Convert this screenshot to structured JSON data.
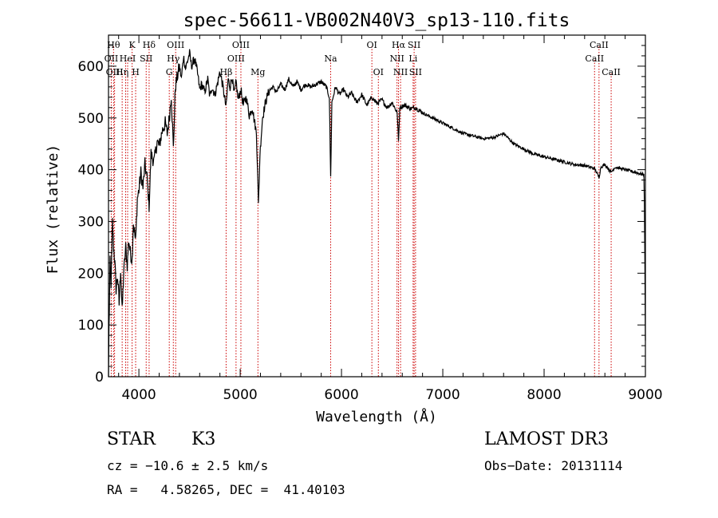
{
  "chart_data": {
    "type": "line",
    "title": "spec-56611-VB002N40V3_sp13-110.fits",
    "xlabel": "Wavelength (Å)",
    "ylabel": "Flux (relative)",
    "xlim": [
      3700,
      9000
    ],
    "ylim": [
      0,
      660
    ],
    "x_ticks": [
      4000,
      5000,
      6000,
      7000,
      8000,
      9000
    ],
    "y_ticks": [
      0,
      100,
      200,
      300,
      400,
      500,
      600
    ],
    "grid": false,
    "line_color": "#000000",
    "marker_color": "#cc0000",
    "continuum": [
      [
        3700,
        0
      ],
      [
        3705,
        90
      ],
      [
        3715,
        220
      ],
      [
        3725,
        180
      ],
      [
        3740,
        300
      ],
      [
        3750,
        250
      ],
      [
        3760,
        230
      ],
      [
        3775,
        170
      ],
      [
        3790,
        195
      ],
      [
        3805,
        140
      ],
      [
        3820,
        210
      ],
      [
        3835,
        125
      ],
      [
        3850,
        200
      ],
      [
        3870,
        250
      ],
      [
        3885,
        215
      ],
      [
        3900,
        265
      ],
      [
        3915,
        240
      ],
      [
        3933,
        225
      ],
      [
        3945,
        300
      ],
      [
        3968,
        260
      ],
      [
        3985,
        345
      ],
      [
        4000,
        360
      ],
      [
        4020,
        395
      ],
      [
        4040,
        365
      ],
      [
        4060,
        410
      ],
      [
        4080,
        385
      ],
      [
        4101,
        330
      ],
      [
        4120,
        430
      ],
      [
        4150,
        415
      ],
      [
        4180,
        455
      ],
      [
        4200,
        445
      ],
      [
        4230,
        475
      ],
      [
        4260,
        490
      ],
      [
        4280,
        470
      ],
      [
        4300,
        500
      ],
      [
        4320,
        545
      ],
      [
        4340,
        440
      ],
      [
        4360,
        560
      ],
      [
        4380,
        580
      ],
      [
        4400,
        600
      ],
      [
        4420,
        575
      ],
      [
        4440,
        620
      ],
      [
        4460,
        595
      ],
      [
        4480,
        610
      ],
      [
        4500,
        625
      ],
      [
        4520,
        600
      ],
      [
        4550,
        615
      ],
      [
        4580,
        585
      ],
      [
        4600,
        555
      ],
      [
        4620,
        565
      ],
      [
        4650,
        550
      ],
      [
        4680,
        575
      ],
      [
        4700,
        540
      ],
      [
        4720,
        560
      ],
      [
        4750,
        545
      ],
      [
        4780,
        570
      ],
      [
        4800,
        590
      ],
      [
        4830,
        560
      ],
      [
        4861,
        520
      ],
      [
        4880,
        575
      ],
      [
        4900,
        560
      ],
      [
        4920,
        580
      ],
      [
        4940,
        545
      ],
      [
        4960,
        570
      ],
      [
        4980,
        535
      ],
      [
        5007,
        555
      ],
      [
        5030,
        525
      ],
      [
        5060,
        540
      ],
      [
        5090,
        505
      ],
      [
        5120,
        520
      ],
      [
        5140,
        495
      ],
      [
        5160,
        470
      ],
      [
        5172,
        400
      ],
      [
        5180,
        330
      ],
      [
        5195,
        430
      ],
      [
        5220,
        500
      ],
      [
        5250,
        530
      ],
      [
        5280,
        550
      ],
      [
        5320,
        560
      ],
      [
        5360,
        550
      ],
      [
        5400,
        565
      ],
      [
        5440,
        555
      ],
      [
        5480,
        575
      ],
      [
        5520,
        560
      ],
      [
        5560,
        570
      ],
      [
        5600,
        555
      ],
      [
        5650,
        565
      ],
      [
        5700,
        560
      ],
      [
        5750,
        565
      ],
      [
        5800,
        570
      ],
      [
        5850,
        560
      ],
      [
        5880,
        540
      ],
      [
        5893,
        385
      ],
      [
        5905,
        530
      ],
      [
        5940,
        560
      ],
      [
        5980,
        545
      ],
      [
        6020,
        555
      ],
      [
        6060,
        540
      ],
      [
        6100,
        548
      ],
      [
        6150,
        530
      ],
      [
        6200,
        545
      ],
      [
        6250,
        525
      ],
      [
        6300,
        540
      ],
      [
        6350,
        528
      ],
      [
        6400,
        535
      ],
      [
        6450,
        520
      ],
      [
        6500,
        530
      ],
      [
        6550,
        510
      ],
      [
        6563,
        455
      ],
      [
        6575,
        520
      ],
      [
        6620,
        525
      ],
      [
        6680,
        518
      ],
      [
        6730,
        520
      ],
      [
        6800,
        510
      ],
      [
        6900,
        500
      ],
      [
        7000,
        490
      ],
      [
        7100,
        480
      ],
      [
        7200,
        470
      ],
      [
        7300,
        465
      ],
      [
        7400,
        460
      ],
      [
        7500,
        462
      ],
      [
        7600,
        470
      ],
      [
        7650,
        460
      ],
      [
        7700,
        450
      ],
      [
        7800,
        440
      ],
      [
        7900,
        430
      ],
      [
        8000,
        425
      ],
      [
        8100,
        420
      ],
      [
        8200,
        415
      ],
      [
        8300,
        410
      ],
      [
        8400,
        408
      ],
      [
        8500,
        402
      ],
      [
        8542,
        385
      ],
      [
        8560,
        405
      ],
      [
        8600,
        410
      ],
      [
        8662,
        395
      ],
      [
        8700,
        405
      ],
      [
        8800,
        400
      ],
      [
        8900,
        395
      ],
      [
        8985,
        390
      ],
      [
        8990,
        340
      ],
      [
        9000,
        70
      ]
    ],
    "lines": [
      {
        "wl": 3750,
        "label": "Hθ",
        "row": 0
      },
      {
        "wl": 3727,
        "label": "OII",
        "row": 1
      },
      {
        "wl": 3760,
        "label": "OIII",
        "row": 2
      },
      {
        "wl": 3835,
        "label": "Hη",
        "row": 2
      },
      {
        "wl": 3869,
        "label": "",
        "row": 1
      },
      {
        "wl": 3889,
        "label": "HeI",
        "row": 1
      },
      {
        "wl": 3933,
        "label": "K",
        "row": 0
      },
      {
        "wl": 3968,
        "label": "H",
        "row": 2
      },
      {
        "wl": 4072,
        "label": "SII",
        "row": 1
      },
      {
        "wl": 4101,
        "label": "Hδ",
        "row": 0
      },
      {
        "wl": 4300,
        "label": "G",
        "row": 2
      },
      {
        "wl": 4340,
        "label": "Hγ",
        "row": 1
      },
      {
        "wl": 4363,
        "label": "OIII",
        "row": 0
      },
      {
        "wl": 4861,
        "label": "Hβ",
        "row": 2
      },
      {
        "wl": 4959,
        "label": "OIII",
        "row": 1
      },
      {
        "wl": 5007,
        "label": "OIII",
        "row": 0
      },
      {
        "wl": 5175,
        "label": "Mg",
        "row": 2
      },
      {
        "wl": 5893,
        "label": "Na",
        "row": 1
      },
      {
        "wl": 6300,
        "label": "OI",
        "row": 0
      },
      {
        "wl": 6364,
        "label": "OI",
        "row": 2
      },
      {
        "wl": 6548,
        "label": "NII",
        "row": 1
      },
      {
        "wl": 6563,
        "label": "Hα",
        "row": 0
      },
      {
        "wl": 6583,
        "label": "NII",
        "row": 2
      },
      {
        "wl": 6707,
        "label": "Li",
        "row": 1
      },
      {
        "wl": 6717,
        "label": "SII",
        "row": 0
      },
      {
        "wl": 6731,
        "label": "SII",
        "row": 2
      },
      {
        "wl": 8498,
        "label": "CaII",
        "row": 1
      },
      {
        "wl": 8542,
        "label": "CaII",
        "row": 0
      },
      {
        "wl": 8662,
        "label": "CaII",
        "row": 2
      }
    ]
  },
  "info": {
    "class_label": "STAR",
    "subclass_label": "K3",
    "survey_label": "LAMOST DR3",
    "cz_text": "cz = −10.6 ± 2.5 km/s",
    "obsdate_text": "Obs−Date: 20131114",
    "radec_text": "RA =   4.58265, DEC =  41.40103"
  }
}
